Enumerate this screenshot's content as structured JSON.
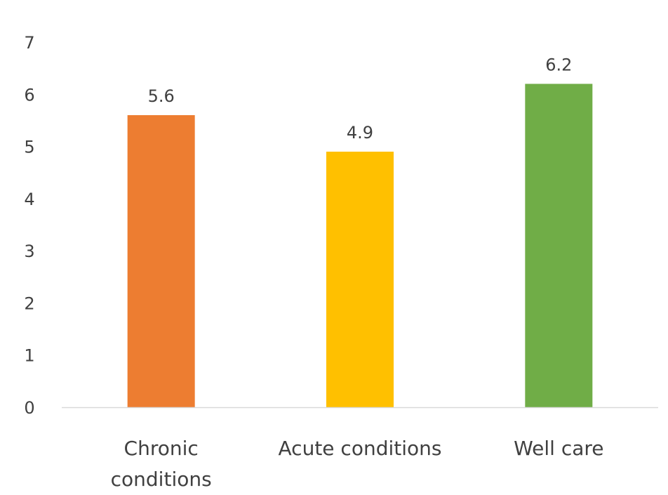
{
  "chart_data": {
    "type": "bar",
    "title": "",
    "xlabel": "",
    "ylabel": "",
    "categories": [
      "Chronic conditions",
      "Acute conditions",
      "Well care"
    ],
    "category_lines": [
      [
        "Chronic",
        "conditions"
      ],
      [
        "Acute conditions"
      ],
      [
        "Well care"
      ]
    ],
    "values": [
      5.6,
      4.9,
      6.2
    ],
    "data_labels": [
      "5.6",
      "4.9",
      "6.2"
    ],
    "bar_colors": [
      "#ED7D31",
      "#FFC000",
      "#70AD47"
    ],
    "ylim": [
      0,
      7
    ],
    "y_ticks": [
      0,
      1,
      2,
      3,
      4,
      5,
      6,
      7
    ],
    "grid": false,
    "legend": "none",
    "axis_color": "#D9D9D9",
    "text_color": "#404040"
  }
}
